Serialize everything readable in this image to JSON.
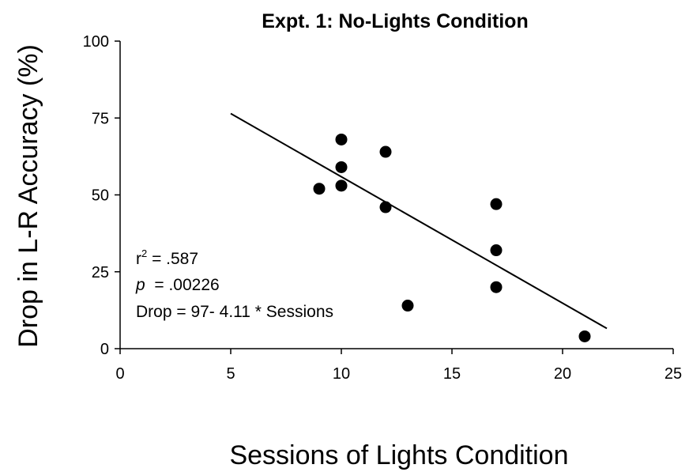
{
  "chart_data": {
    "type": "scatter",
    "title": "Expt. 1: No-Lights Condition",
    "xlabel": "Sessions of Lights Condition",
    "ylabel": "Drop in L-R Accuracy (%)",
    "xlim": [
      0,
      25
    ],
    "ylim": [
      0,
      100
    ],
    "xticks": [
      "0",
      "5",
      "10",
      "15",
      "20",
      "25"
    ],
    "yticks": [
      "0",
      "25",
      "50",
      "75",
      "100"
    ],
    "grid": false,
    "points": [
      {
        "x": 9,
        "y": 52
      },
      {
        "x": 10,
        "y": 68
      },
      {
        "x": 10,
        "y": 59
      },
      {
        "x": 10,
        "y": 53
      },
      {
        "x": 12,
        "y": 64
      },
      {
        "x": 12,
        "y": 46
      },
      {
        "x": 13,
        "y": 14
      },
      {
        "x": 17,
        "y": 47
      },
      {
        "x": 17,
        "y": 32
      },
      {
        "x": 17,
        "y": 20
      },
      {
        "x": 21,
        "y": 4
      }
    ],
    "trendline": {
      "intercept": 97,
      "slope": -4.11,
      "x_range": [
        5,
        22
      ]
    },
    "annotations": {
      "r2_base": "r",
      "r2_sup": "2",
      "r2_value": " = .587",
      "p_symbol": "p",
      "p_value": "  = .00226",
      "equation": "Drop = 97- 4.11 * Sessions"
    }
  }
}
